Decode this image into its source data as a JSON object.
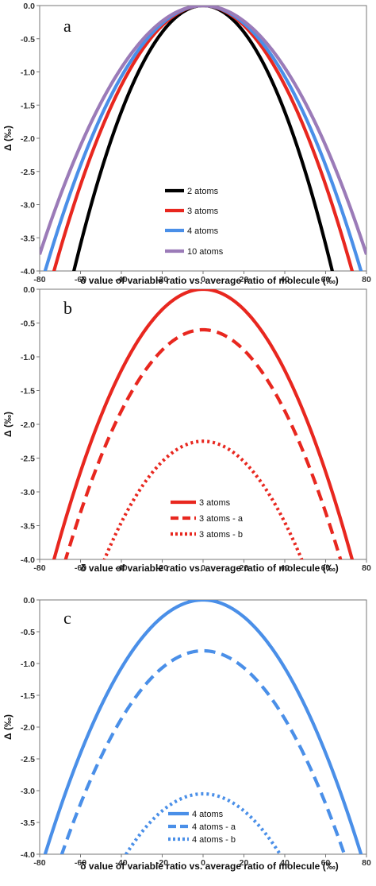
{
  "chart_data": [
    {
      "type": "line",
      "panel_label": "a",
      "xlabel": "δ value of variable ratio vs. average ratio of molecule (‰)",
      "ylabel": "Δ (‰)",
      "xlim": [
        -80,
        80
      ],
      "ylim": [
        -4.0,
        0.0
      ],
      "x_ticks": [
        "-80",
        "-60",
        "-40",
        "-20",
        "0",
        "20",
        "40",
        "60",
        "80"
      ],
      "y_ticks": [
        "0.0",
        "-0.5",
        "-1.0",
        "-1.5",
        "-2.0",
        "-2.5",
        "-3.0",
        "-3.5",
        "-4.0"
      ],
      "grid": false,
      "legend_position": "bottom-center",
      "series": [
        {
          "name": "2 atoms",
          "color": "#000000",
          "dash": "solid",
          "offset": 0.0,
          "k": 0.001,
          "x_at_ymin": 63
        },
        {
          "name": "3 atoms",
          "color": "#e8271f",
          "dash": "solid",
          "offset": 0.0,
          "k": 0.000751,
          "x_at_ymin": 73
        },
        {
          "name": "4 atoms",
          "color": "#4a8fe8",
          "dash": "solid",
          "offset": 0.0,
          "k": 0.000669,
          "x_at_ymin": 77
        },
        {
          "name": "10 atoms",
          "color": "#9b7bb8",
          "dash": "solid",
          "offset": 0.0,
          "k": 0.000586,
          "x_at_ymin": 82.6
        }
      ]
    },
    {
      "type": "line",
      "panel_label": "b",
      "xlabel": "δ value of variable ratio vs. average ratio of molecule (‰)",
      "ylabel": "Δ (‰)",
      "xlim": [
        -80,
        80
      ],
      "ylim": [
        -4.0,
        0.0
      ],
      "x_ticks": [
        "-80",
        "-60",
        "-40",
        "-20",
        "0",
        "20",
        "40",
        "60",
        "80"
      ],
      "y_ticks": [
        "0.0",
        "-0.5",
        "-1.0",
        "-1.5",
        "-2.0",
        "-2.5",
        "-3.0",
        "-3.5",
        "-4.0"
      ],
      "grid": false,
      "legend_position": "bottom-center",
      "series": [
        {
          "name": "3 atoms",
          "color": "#e8271f",
          "dash": "solid",
          "offset": 0.0,
          "k": 0.000751,
          "x_at_ymin": 73
        },
        {
          "name": "3 atoms - a",
          "color": "#e8271f",
          "dash": "dashed",
          "offset": -0.6,
          "k": 0.000751,
          "x_at_ymin": 67.2
        },
        {
          "name": "3 atoms - b",
          "color": "#e8271f",
          "dash": "dotted",
          "offset": -2.25,
          "k": 0.000751,
          "x_at_ymin": 47.6
        }
      ]
    },
    {
      "type": "line",
      "panel_label": "c",
      "xlabel": "δ value of variable ratio vs. average ratio of molecule (‰)",
      "ylabel": "Δ (‰)",
      "xlim": [
        -80,
        80
      ],
      "ylim": [
        -4.0,
        0.0
      ],
      "x_ticks": [
        "-80",
        "-60",
        "-40",
        "-20",
        "0",
        "20",
        "40",
        "60",
        "80"
      ],
      "y_ticks": [
        "0.0",
        "-0.5",
        "-1.0",
        "-1.5",
        "-2.0",
        "-2.5",
        "-3.0",
        "-3.5",
        "-4.0"
      ],
      "grid": false,
      "legend_position": "bottom-center",
      "series": [
        {
          "name": "4 atoms",
          "color": "#4a8fe8",
          "dash": "solid",
          "offset": 0.0,
          "k": 0.000669,
          "x_at_ymin": 77
        },
        {
          "name": "4 atoms - a",
          "color": "#4a8fe8",
          "dash": "dashed",
          "offset": -0.8,
          "k": 0.000669,
          "x_at_ymin": 69.2
        },
        {
          "name": "4 atoms - b",
          "color": "#4a8fe8",
          "dash": "dotted",
          "offset": -3.05,
          "k": 0.000669,
          "x_at_ymin": 37.6
        }
      ]
    }
  ]
}
